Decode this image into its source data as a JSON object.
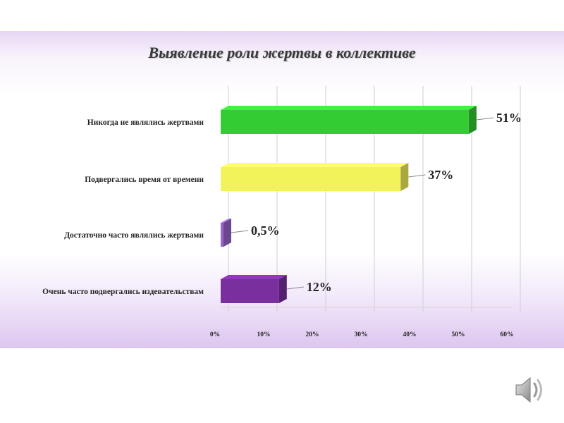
{
  "chart_data": {
    "type": "bar",
    "orientation": "horizontal",
    "title": "Выявление роли жертвы в коллективе",
    "categories": [
      "Никогда не являлись жертвами",
      "Подвергались время от времени",
      "Достаточно часто являлись жертвами",
      "Очень часто подвергались издевательствам"
    ],
    "values": [
      51,
      37,
      0.5,
      12
    ],
    "data_labels": [
      "51%",
      "37%",
      "0,5%",
      "12%"
    ],
    "colors": [
      "#33cc33",
      "#f2f25a",
      "#9966cc",
      "#7a2f9e"
    ],
    "xlim": [
      0,
      60
    ],
    "x_ticks": [
      "0%",
      "10%",
      "20%",
      "30%",
      "40%",
      "50%",
      "60%"
    ],
    "grid": true,
    "legend": "none",
    "style": "3d"
  },
  "icons": {
    "speaker": "speaker-icon"
  }
}
